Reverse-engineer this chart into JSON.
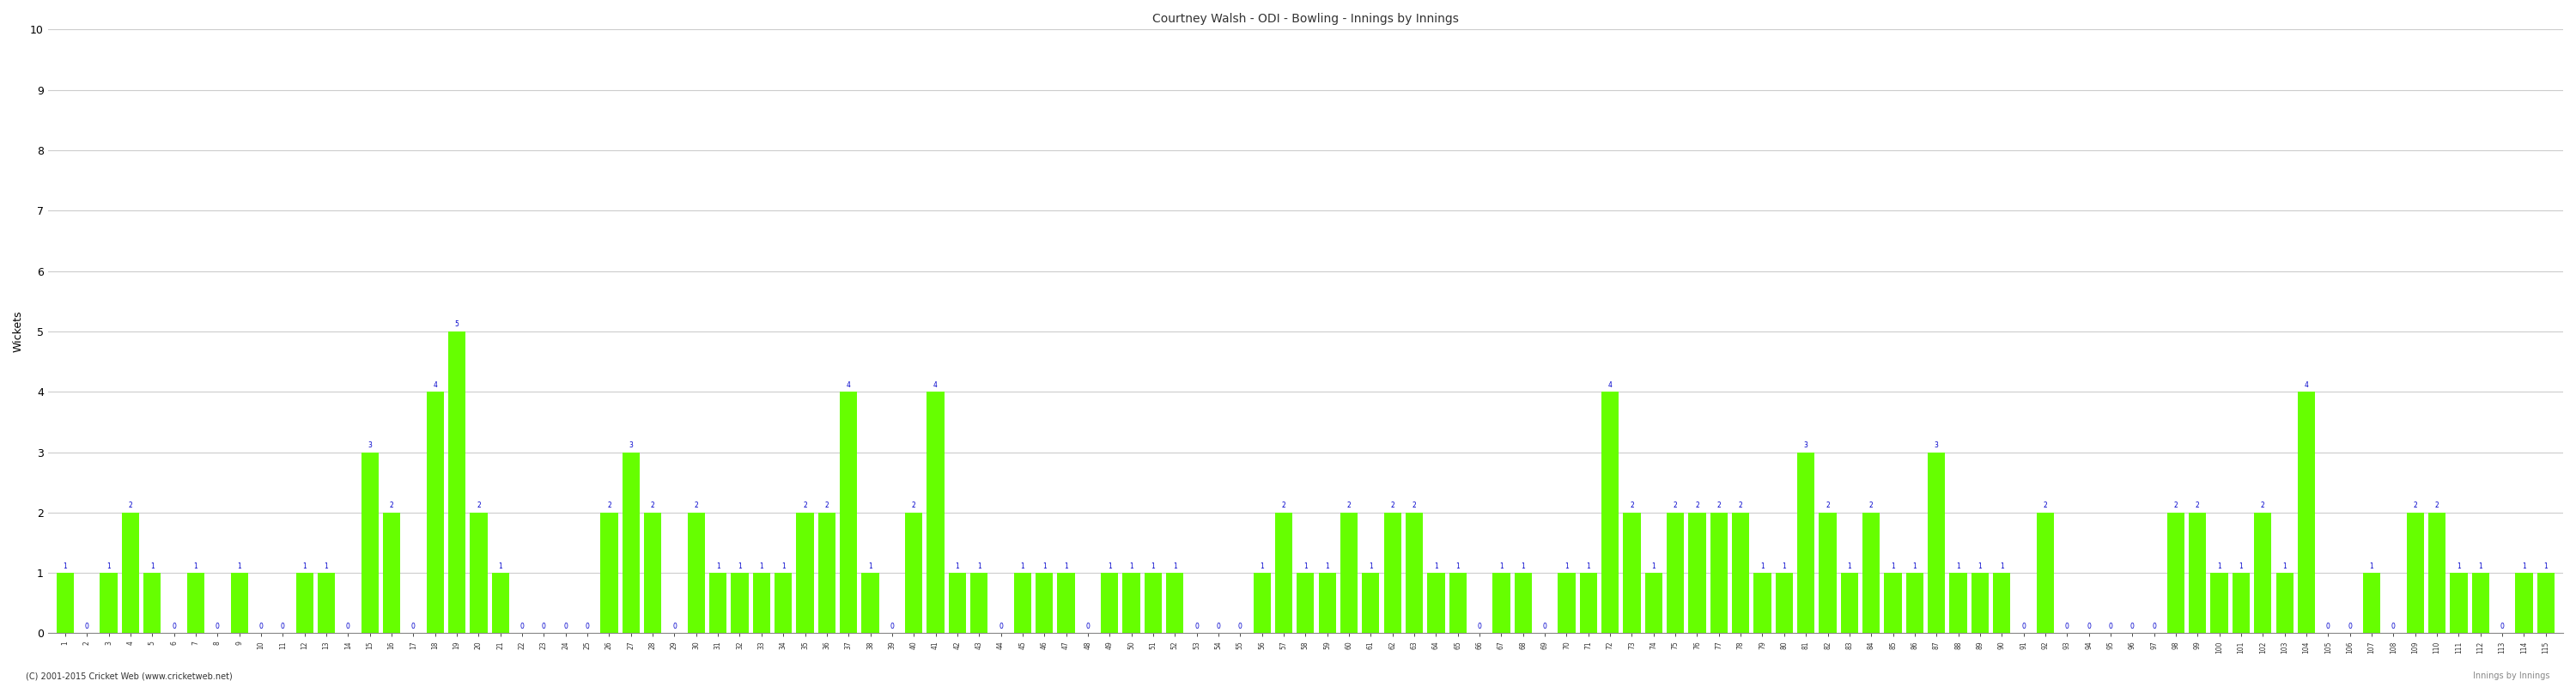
{
  "title": "Courtney Walsh - ODI - Bowling - Innings by Innings",
  "ylabel": "Wickets",
  "bar_color": "#66ff00",
  "label_color": "#0000cc",
  "bg_color": "#ffffff",
  "grid_color": "#cccccc",
  "ylim": [
    0,
    10
  ],
  "yticks": [
    0,
    1,
    2,
    3,
    4,
    5,
    6,
    7,
    8,
    9,
    10
  ],
  "footer": "(C) 2001-2015 Cricket Web (www.cricketweb.net)",
  "innings": [
    1,
    2,
    3,
    4,
    5,
    6,
    7,
    8,
    9,
    10,
    11,
    12,
    13,
    14,
    15,
    16,
    17,
    18,
    19,
    20,
    21,
    22,
    23,
    24,
    25,
    26,
    27,
    28,
    29,
    30,
    31,
    32,
    33,
    34,
    35,
    36,
    37,
    38,
    39,
    40,
    41,
    42,
    43,
    44,
    45,
    46,
    47,
    48,
    49,
    50,
    51,
    52,
    53,
    54,
    55,
    56,
    57,
    58,
    59,
    60,
    61,
    62,
    63,
    64,
    65,
    66,
    67,
    68,
    69,
    70,
    71,
    72,
    73,
    74,
    75,
    76,
    77,
    78,
    79,
    80,
    81,
    82,
    83,
    84,
    85,
    86,
    87,
    88,
    89,
    90,
    91,
    92,
    93,
    94,
    95,
    96,
    97,
    98,
    99,
    100,
    101,
    102,
    103,
    104,
    105,
    106,
    107,
    108,
    109,
    110,
    111,
    112,
    113,
    114,
    115
  ],
  "wickets": [
    1,
    0,
    1,
    2,
    1,
    0,
    1,
    0,
    1,
    0,
    0,
    1,
    1,
    0,
    3,
    2,
    0,
    4,
    5,
    2,
    1,
    0,
    0,
    0,
    0,
    2,
    3,
    2,
    0,
    2,
    1,
    1,
    1,
    1,
    2,
    2,
    4,
    1,
    0,
    2,
    4,
    1,
    1,
    0,
    1,
    1,
    1,
    0,
    1,
    1,
    1,
    1,
    0,
    0,
    0,
    1,
    2,
    1,
    1,
    2,
    1,
    2,
    2,
    1,
    1,
    0,
    1,
    1,
    0,
    1,
    1,
    4,
    2,
    1,
    2,
    2,
    2,
    2,
    1,
    1,
    3,
    2,
    1,
    2,
    1,
    1,
    3,
    1,
    1,
    1,
    0,
    2,
    0,
    0,
    0,
    0,
    0,
    2,
    2,
    1,
    1,
    2,
    1,
    4,
    0,
    0,
    1,
    0,
    2,
    2,
    1,
    1,
    0,
    1,
    1
  ]
}
